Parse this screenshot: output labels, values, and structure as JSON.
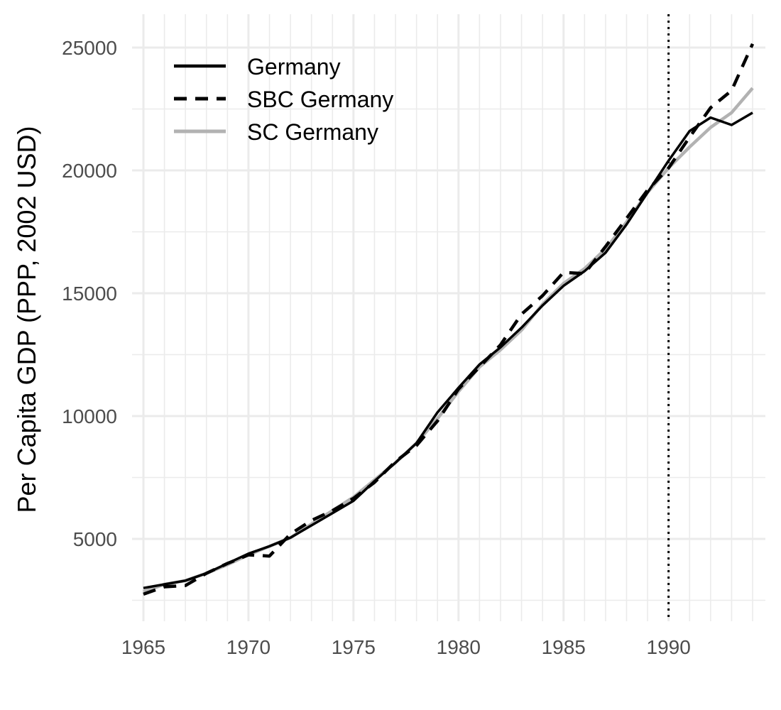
{
  "chart_data": {
    "type": "line",
    "title": "",
    "xlabel": "",
    "ylabel": "Per Capita GDP (PPP, 2002 USD)",
    "xlim": [
      1965,
      1994
    ],
    "ylim": [
      1800,
      26500
    ],
    "x_major_ticks": [
      1965,
      1970,
      1975,
      1980,
      1985,
      1990
    ],
    "x_tick_labels": [
      "1965",
      "1970",
      "1975",
      "1980",
      "1985",
      "1990"
    ],
    "y_major_ticks": [
      5000,
      10000,
      15000,
      20000,
      25000
    ],
    "y_tick_labels": [
      "5000",
      "10000",
      "15000",
      "20000",
      "25000"
    ],
    "grid": true,
    "legend_position": "top-left",
    "treatment_year": 1990,
    "x": [
      1965,
      1966,
      1967,
      1968,
      1969,
      1970,
      1971,
      1972,
      1973,
      1974,
      1975,
      1976,
      1977,
      1978,
      1979,
      1980,
      1981,
      1982,
      1983,
      1984,
      1985,
      1986,
      1987,
      1988,
      1989,
      1990,
      1991,
      1992,
      1993,
      1994
    ],
    "series": [
      {
        "name": "Germany",
        "color": "#000000",
        "dash": "solid",
        "values": [
          3000,
          3150,
          3300,
          3600,
          4000,
          4400,
          4700,
          5050,
          5550,
          6050,
          6550,
          7350,
          8100,
          8900,
          10150,
          11150,
          12100,
          12800,
          13600,
          14500,
          15300,
          15900,
          16650,
          17800,
          19100,
          20400,
          21600,
          22150,
          21850,
          22350
        ]
      },
      {
        "name": "SBC Germany",
        "color": "#000000",
        "dash": "dashed",
        "values": [
          2750,
          3050,
          3100,
          3600,
          4000,
          4350,
          4300,
          5200,
          5750,
          6150,
          6650,
          7300,
          8150,
          8800,
          9800,
          11100,
          12000,
          12900,
          14150,
          14900,
          15850,
          15800,
          16900,
          18050,
          19200,
          20100,
          21350,
          22550,
          23250,
          25150
        ]
      },
      {
        "name": "SC Germany",
        "color": "#b2b2b2",
        "dash": "solid",
        "values": [
          2850,
          3150,
          3300,
          3600,
          3950,
          4350,
          4700,
          5050,
          5600,
          6150,
          6700,
          7400,
          8100,
          8900,
          9900,
          11000,
          12000,
          12700,
          13500,
          14550,
          15400,
          16000,
          16800,
          17900,
          19100,
          20100,
          20950,
          21750,
          22350,
          23350
        ]
      }
    ]
  }
}
